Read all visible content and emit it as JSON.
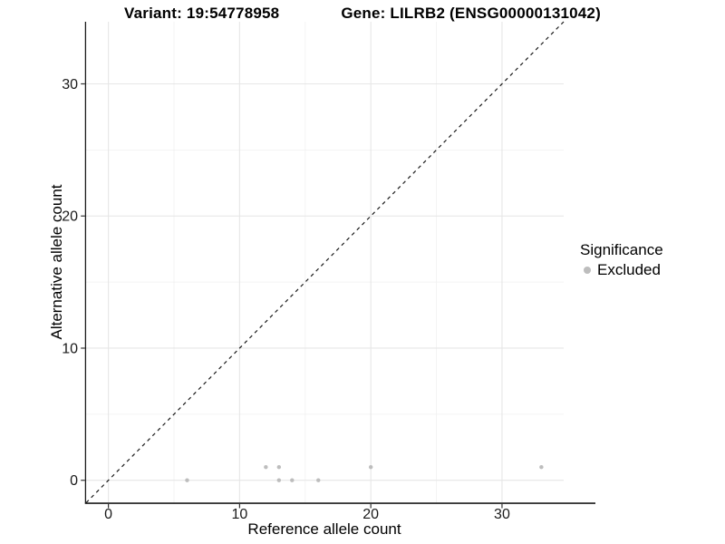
{
  "chart_data": {
    "type": "scatter",
    "title_variant": "Variant: 19:54778958",
    "title_gene": "Gene: LILRB2 (ENSG00000131042)",
    "xlabel": "Reference allele count",
    "ylabel": "Alternative allele count",
    "xlim": [
      -1.7,
      34.7
    ],
    "ylim": [
      -1.7,
      34.7
    ],
    "x_ticks": [
      0,
      10,
      20,
      30
    ],
    "y_ticks": [
      0,
      10,
      20,
      30
    ],
    "x_minor_ticks": [
      5,
      15,
      25
    ],
    "y_minor_ticks": [
      5,
      15,
      25
    ],
    "grid": true,
    "identity_line": {
      "style": "dashed",
      "slope": 1,
      "intercept": 0
    },
    "series": [
      {
        "name": "Excluded",
        "color": "#bdbdbd",
        "points": [
          [
            6,
            0
          ],
          [
            12,
            1
          ],
          [
            13,
            0
          ],
          [
            13,
            1
          ],
          [
            14,
            0
          ],
          [
            16,
            0
          ],
          [
            20,
            1
          ],
          [
            33,
            1
          ]
        ]
      }
    ],
    "legend": {
      "position": "right",
      "title": "Significance",
      "items": [
        {
          "label": "Excluded",
          "color": "#bdbdbd"
        }
      ]
    },
    "colors": {
      "background": "#ffffff",
      "grid_major": "#e6e6e6",
      "grid_minor": "#f0f0f0",
      "axis_line": "#1a1a1a",
      "tick": "#333333",
      "tick_label": "#1a1a1a",
      "identity_line": "#1a1a1a",
      "point": "#bdbdbd"
    }
  }
}
